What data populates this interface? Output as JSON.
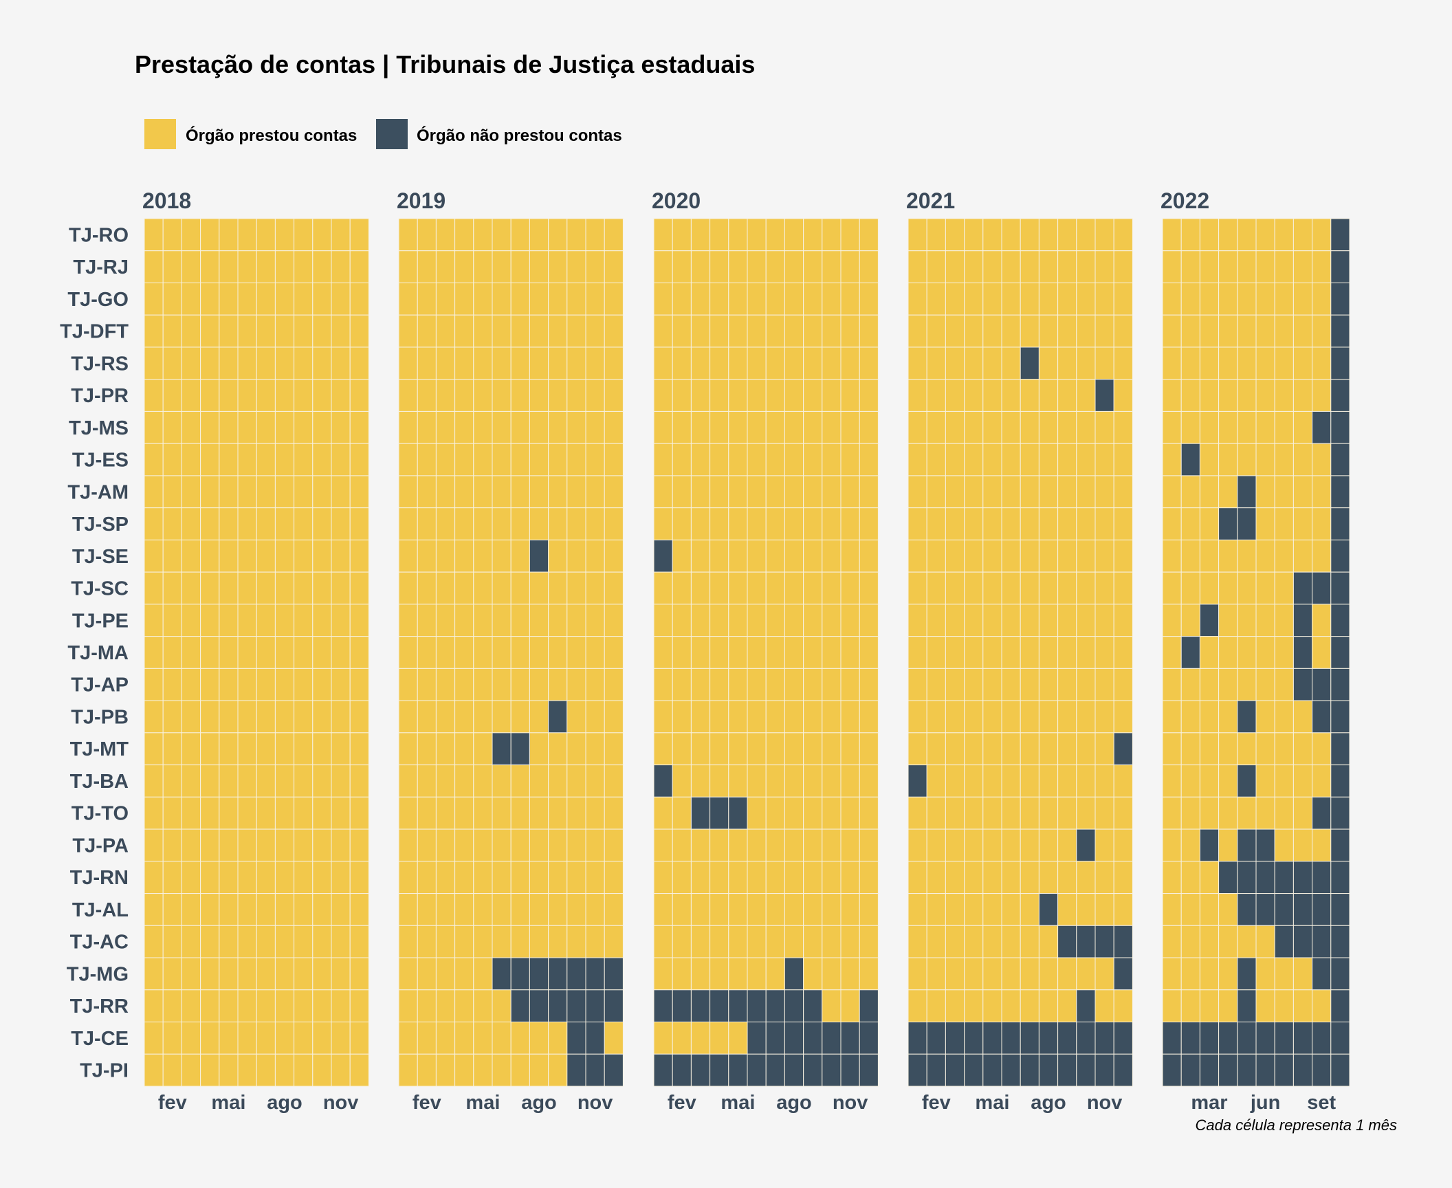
{
  "chart_data": {
    "type": "heatmap",
    "title": "Prestação de contas | Tribunais de Justiça estaduais",
    "caption": "Cada célula representa 1 mês",
    "colors": {
      "submitted": "#f2c84b",
      "not_submitted": "#3c4f5f",
      "background": "#f5f5f5",
      "text": "#3b4a5a"
    },
    "legend": {
      "placement": "top-left",
      "items": [
        {
          "key": "submitted",
          "label": "Órgão prestou contas"
        },
        {
          "key": "not_submitted",
          "label": "Órgão não prestou contas"
        }
      ]
    },
    "rows": [
      "TJ-RO",
      "TJ-RJ",
      "TJ-GO",
      "TJ-DFT",
      "TJ-RS",
      "TJ-PR",
      "TJ-MS",
      "TJ-ES",
      "TJ-AM",
      "TJ-SP",
      "TJ-SE",
      "TJ-SC",
      "TJ-PE",
      "TJ-MA",
      "TJ-AP",
      "TJ-PB",
      "TJ-MT",
      "TJ-BA",
      "TJ-TO",
      "TJ-PA",
      "TJ-RN",
      "TJ-AL",
      "TJ-AC",
      "TJ-MG",
      "TJ-RR",
      "TJ-CE",
      "TJ-PI"
    ],
    "panels": [
      {
        "year": "2018",
        "months": 12,
        "month_ticks": [
          {
            "month": 2,
            "label": "fev"
          },
          {
            "month": 5,
            "label": "mai"
          },
          {
            "month": 8,
            "label": "ago"
          },
          {
            "month": 11,
            "label": "nov"
          }
        ],
        "missing": {}
      },
      {
        "year": "2019",
        "months": 12,
        "month_ticks": [
          {
            "month": 2,
            "label": "fev"
          },
          {
            "month": 5,
            "label": "mai"
          },
          {
            "month": 8,
            "label": "ago"
          },
          {
            "month": 11,
            "label": "nov"
          }
        ],
        "missing": {
          "TJ-SE": [
            8
          ],
          "TJ-PB": [
            9
          ],
          "TJ-MT": [
            6,
            7
          ],
          "TJ-MG": [
            6,
            7,
            8,
            9,
            10,
            11,
            12
          ],
          "TJ-RR": [
            7,
            8,
            9,
            10,
            11,
            12
          ],
          "TJ-CE": [
            10,
            11
          ],
          "TJ-PI": [
            10,
            11,
            12
          ]
        }
      },
      {
        "year": "2020",
        "months": 12,
        "month_ticks": [
          {
            "month": 2,
            "label": "fev"
          },
          {
            "month": 5,
            "label": "mai"
          },
          {
            "month": 8,
            "label": "ago"
          },
          {
            "month": 11,
            "label": "nov"
          }
        ],
        "missing": {
          "TJ-SE": [
            1
          ],
          "TJ-BA": [
            1
          ],
          "TJ-TO": [
            3,
            4,
            5
          ],
          "TJ-MG": [
            8
          ],
          "TJ-RR": [
            1,
            2,
            3,
            4,
            5,
            6,
            7,
            8,
            9,
            12
          ],
          "TJ-CE": [
            6,
            7,
            8,
            9,
            10,
            11,
            12
          ],
          "TJ-PI": [
            1,
            2,
            3,
            4,
            5,
            6,
            7,
            8,
            9,
            10,
            11,
            12
          ]
        }
      },
      {
        "year": "2021",
        "months": 12,
        "month_ticks": [
          {
            "month": 2,
            "label": "fev"
          },
          {
            "month": 5,
            "label": "mai"
          },
          {
            "month": 8,
            "label": "ago"
          },
          {
            "month": 11,
            "label": "nov"
          }
        ],
        "missing": {
          "TJ-RS": [
            7
          ],
          "TJ-PR": [
            11
          ],
          "TJ-MT": [
            12
          ],
          "TJ-BA": [
            1
          ],
          "TJ-PA": [
            10
          ],
          "TJ-AL": [
            8
          ],
          "TJ-AC": [
            9,
            10,
            11,
            12
          ],
          "TJ-MG": [
            12
          ],
          "TJ-RR": [
            10
          ],
          "TJ-CE": [
            1,
            2,
            3,
            4,
            5,
            6,
            7,
            8,
            9,
            10,
            11,
            12
          ],
          "TJ-PI": [
            1,
            2,
            3,
            4,
            5,
            6,
            7,
            8,
            9,
            10,
            11,
            12
          ]
        }
      },
      {
        "year": "2022",
        "months": 10,
        "month_ticks": [
          {
            "month": 3,
            "label": "mar"
          },
          {
            "month": 6,
            "label": "jun"
          },
          {
            "month": 9,
            "label": "set"
          }
        ],
        "missing": {
          "TJ-RO": [
            10
          ],
          "TJ-RJ": [
            10
          ],
          "TJ-GO": [
            10
          ],
          "TJ-DFT": [
            10
          ],
          "TJ-RS": [
            10
          ],
          "TJ-PR": [
            10
          ],
          "TJ-MS": [
            9,
            10
          ],
          "TJ-ES": [
            2,
            10
          ],
          "TJ-AM": [
            5,
            10
          ],
          "TJ-SP": [
            4,
            5,
            10
          ],
          "TJ-SE": [
            10
          ],
          "TJ-SC": [
            8,
            9,
            10
          ],
          "TJ-PE": [
            3,
            8,
            10
          ],
          "TJ-MA": [
            2,
            8,
            10
          ],
          "TJ-AP": [
            8,
            9,
            10
          ],
          "TJ-PB": [
            5,
            9,
            10
          ],
          "TJ-MT": [
            10
          ],
          "TJ-BA": [
            5,
            10
          ],
          "TJ-TO": [
            9,
            10
          ],
          "TJ-PA": [
            3,
            5,
            6,
            10
          ],
          "TJ-RN": [
            4,
            5,
            6,
            7,
            8,
            9,
            10
          ],
          "TJ-AL": [
            5,
            6,
            7,
            8,
            9,
            10
          ],
          "TJ-AC": [
            7,
            8,
            9,
            10
          ],
          "TJ-MG": [
            5,
            9,
            10
          ],
          "TJ-RR": [
            5,
            10
          ],
          "TJ-CE": [
            1,
            2,
            3,
            4,
            5,
            6,
            7,
            8,
            9,
            10
          ],
          "TJ-PI": [
            1,
            2,
            3,
            4,
            5,
            6,
            7,
            8,
            9,
            10
          ]
        }
      }
    ]
  }
}
